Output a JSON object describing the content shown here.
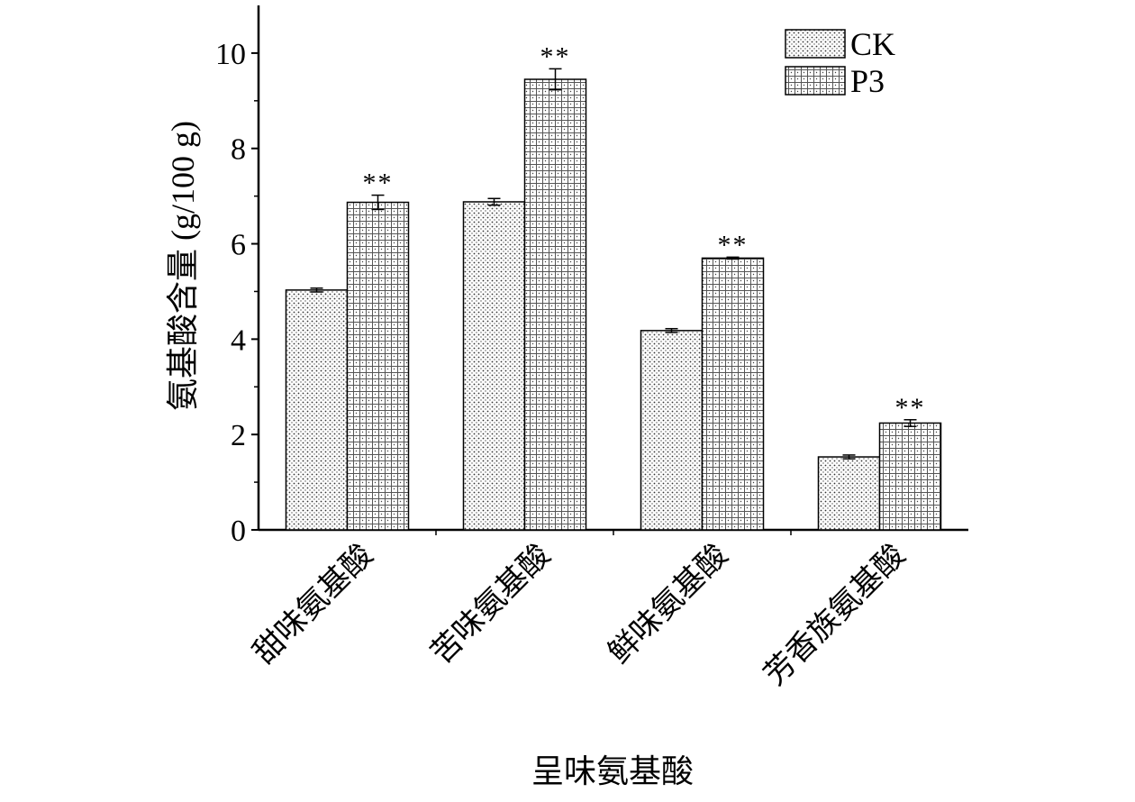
{
  "chart_data": {
    "type": "bar",
    "title": "",
    "xlabel": "呈味氨基酸",
    "ylabel": "氨基酸含量 (g/100 g)",
    "ylim": [
      0,
      11
    ],
    "yticks": [
      0,
      2,
      4,
      6,
      8,
      10
    ],
    "ytick_labels": [
      "0",
      "2",
      "4",
      "6",
      "8",
      "10"
    ],
    "categories": [
      "甜味氨基酸",
      "苦味氨基酸",
      "鲜味氨基酸",
      "芳香族氨基酸"
    ],
    "series": [
      {
        "name": "CK",
        "values": [
          5.03,
          6.88,
          4.18,
          1.53
        ],
        "errors": [
          0.04,
          0.07,
          0.04,
          0.04
        ],
        "pattern": "dots",
        "annotations": [
          "",
          "",
          "",
          ""
        ]
      },
      {
        "name": "P3",
        "values": [
          6.87,
          9.45,
          5.7,
          2.24
        ],
        "errors": [
          0.15,
          0.22,
          0.02,
          0.07
        ],
        "pattern": "grid",
        "annotations": [
          "**",
          "**",
          "**",
          "**"
        ]
      }
    ],
    "legend_position": "top-right",
    "grid": false
  }
}
